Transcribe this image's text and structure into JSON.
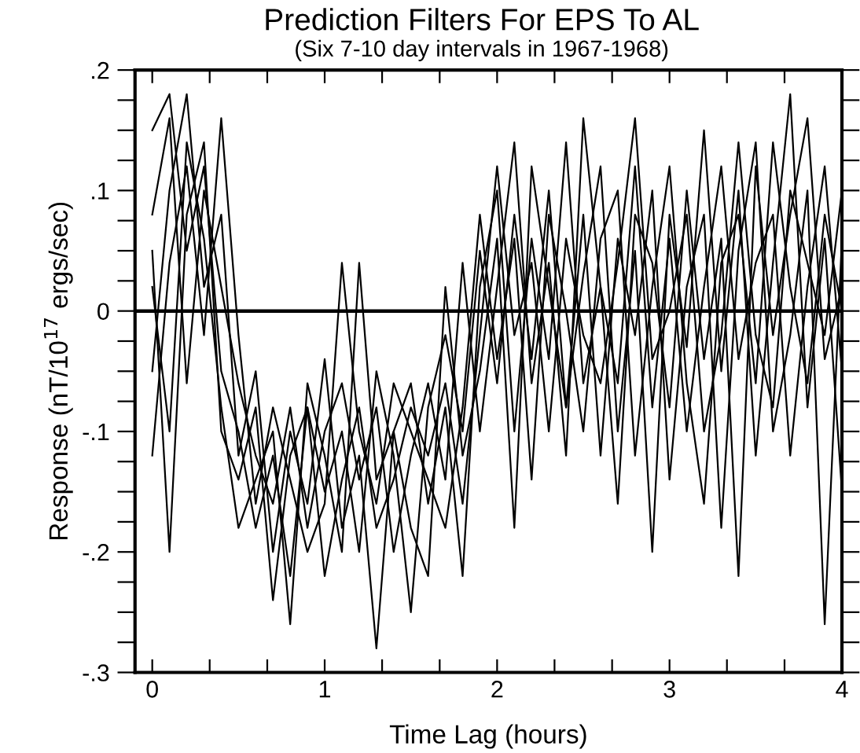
{
  "chart_data": {
    "type": "line",
    "title": "Prediction Filters For EPS To AL",
    "subtitle": "(Six 7-10 day intervals in 1967-1968)",
    "xlabel": "Time Lag (hours)",
    "ylabel": "Response (nT/10$^{17}$ ergs/sec)",
    "x": [
      0,
      0.1,
      0.2,
      0.3,
      0.4,
      0.5,
      0.6,
      0.7,
      0.8,
      0.9,
      1.0,
      1.1,
      1.2,
      1.3,
      1.4,
      1.5,
      1.6,
      1.7,
      1.8,
      1.9,
      2.0,
      2.1,
      2.2,
      2.3,
      2.4,
      2.5,
      2.6,
      2.7,
      2.8,
      2.9,
      3.0,
      3.1,
      3.2,
      3.3,
      3.4,
      3.5,
      3.6,
      3.7,
      3.8,
      3.9,
      4.0
    ],
    "series": [
      {
        "color": "#000000",
        "values": [
          0.15,
          0.18,
          0.05,
          0.12,
          -0.05,
          -0.1,
          -0.18,
          -0.12,
          -0.22,
          -0.08,
          -0.15,
          -0.1,
          -0.2,
          -0.05,
          -0.12,
          -0.25,
          -0.08,
          -0.02,
          -0.1,
          0.05,
          -0.06,
          0.08,
          -0.04,
          0.1,
          -0.08,
          0.03,
          0.12,
          -0.1,
          0.05,
          -0.2,
          0.08,
          -0.03,
          0.15,
          -0.05,
          0.1,
          -0.12,
          0.04,
          0.18,
          -0.08,
          0.06,
          -0.15
        ]
      },
      {
        "color": "#000000",
        "values": [
          -0.05,
          0.1,
          0.18,
          0.02,
          0.08,
          -0.12,
          -0.05,
          -0.2,
          -0.1,
          -0.16,
          -0.04,
          -0.18,
          -0.12,
          -0.28,
          -0.1,
          -0.06,
          -0.16,
          -0.08,
          -0.22,
          0.02,
          0.1,
          -0.1,
          0.06,
          -0.04,
          0.14,
          -0.06,
          0.02,
          -0.16,
          0.08,
          0.04,
          -0.08,
          0.1,
          -0.04,
          0.06,
          -0.22,
          0.12,
          -0.02,
          0.08,
          0.16,
          -0.04,
          0.02
        ]
      },
      {
        "color": "#000000",
        "values": [
          0.02,
          -0.1,
          0.14,
          0.06,
          -0.08,
          -0.18,
          -0.14,
          -0.1,
          -0.26,
          -0.06,
          -0.12,
          -0.2,
          0.04,
          -0.14,
          -0.1,
          -0.18,
          -0.22,
          0.02,
          -0.12,
          -0.05,
          0.06,
          -0.18,
          0.12,
          0.02,
          -0.08,
          0.08,
          -0.12,
          0.06,
          -0.02,
          0.1,
          -0.14,
          0.02,
          0.08,
          -0.18,
          0.05,
          0.14,
          -0.1,
          -0.02,
          0.1,
          -0.26,
          0.06
        ]
      },
      {
        "color": "#000000",
        "values": [
          0.08,
          0.16,
          -0.06,
          0.1,
          0.02,
          -0.06,
          -0.12,
          -0.16,
          -0.08,
          -0.18,
          -0.1,
          -0.06,
          -0.14,
          -0.08,
          -0.2,
          -0.12,
          -0.06,
          -0.14,
          0.04,
          -0.1,
          0.02,
          0.14,
          -0.06,
          0.04,
          -0.12,
          0.16,
          0.02,
          -0.06,
          0.12,
          -0.08,
          0.06,
          -0.1,
          0.02,
          0.12,
          -0.04,
          0.04,
          0.08,
          -0.12,
          0.02,
          0.12,
          -0.05
        ]
      },
      {
        "color": "#000000",
        "values": [
          -0.12,
          0.04,
          0.12,
          -0.02,
          0.16,
          -0.02,
          -0.16,
          -0.08,
          -0.14,
          -0.2,
          -0.16,
          0.04,
          -0.1,
          -0.16,
          -0.06,
          -0.1,
          -0.14,
          -0.18,
          -0.08,
          0.08,
          -0.04,
          0.06,
          -0.14,
          0.08,
          0.0,
          -0.1,
          0.06,
          0.1,
          -0.12,
          0.02,
          0.12,
          -0.06,
          -0.16,
          0.04,
          0.08,
          -0.06,
          0.14,
          0.02,
          -0.06,
          0.08,
          0.0
        ]
      },
      {
        "color": "#000000",
        "values": [
          0.05,
          -0.2,
          0.08,
          0.14,
          -0.1,
          -0.14,
          -0.08,
          -0.24,
          -0.12,
          -0.08,
          -0.22,
          -0.14,
          -0.08,
          -0.18,
          -0.14,
          -0.08,
          -0.12,
          -0.06,
          -0.16,
          -0.02,
          0.12,
          -0.02,
          0.04,
          -0.1,
          0.06,
          -0.02,
          -0.06,
          0.04,
          0.16,
          -0.04,
          0.0,
          0.08,
          -0.1,
          -0.02,
          0.14,
          -0.02,
          -0.08,
          0.1,
          0.04,
          -0.02,
          0.1
        ]
      }
    ],
    "xlim": [
      -0.1,
      4.0
    ],
    "ylim": [
      -0.3,
      0.2
    ],
    "xticks": [
      0,
      {
        "value": 0.333,
        "label": null
      },
      {
        "value": 0.667,
        "label": null
      },
      1,
      {
        "value": 1.333,
        "label": null
      },
      {
        "value": 1.667,
        "label": null
      },
      2,
      {
        "value": 2.333,
        "label": null
      },
      {
        "value": 2.667,
        "label": null
      },
      3,
      {
        "value": 3.333,
        "label": null
      },
      {
        "value": 3.667,
        "label": null
      },
      4
    ],
    "yticks": [
      {
        "value": -0.3,
        "label": "-.3"
      },
      {
        "value": -0.275,
        "label": null
      },
      {
        "value": -0.25,
        "label": null
      },
      {
        "value": -0.225,
        "label": null
      },
      {
        "value": -0.2,
        "label": "-.2"
      },
      {
        "value": -0.175,
        "label": null
      },
      {
        "value": -0.15,
        "label": null
      },
      {
        "value": -0.125,
        "label": null
      },
      {
        "value": -0.1,
        "label": "-.1"
      },
      {
        "value": -0.075,
        "label": null
      },
      {
        "value": -0.05,
        "label": null
      },
      {
        "value": -0.025,
        "label": null
      },
      0,
      {
        "value": 0.025,
        "label": null
      },
      {
        "value": 0.05,
        "label": null
      },
      {
        "value": 0.075,
        "label": null
      },
      {
        "value": 0.1,
        "label": ".1"
      },
      {
        "value": 0.125,
        "label": null
      },
      {
        "value": 0.15,
        "label": null
      },
      {
        "value": 0.175,
        "label": null
      },
      {
        "value": 0.2,
        "label": ".2"
      }
    ],
    "ref_lines": [
      {
        "axis": "y",
        "value": 0,
        "color": "#000000"
      }
    ],
    "grid": false,
    "legend": false,
    "marker": "none",
    "line_style": "solid"
  }
}
